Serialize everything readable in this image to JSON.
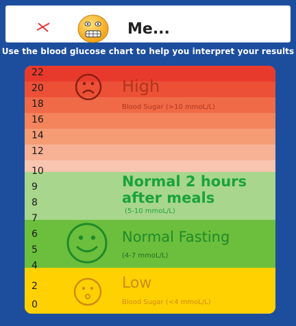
{
  "header": {
    "title": "Me...",
    "instructions": "Use the blood glucose chart to help you interpret your results"
  },
  "icons": {
    "close": "close-icon",
    "mood": "grimace-face-icon"
  },
  "chart": {
    "ticks": [
      "22",
      "20",
      "18",
      "16",
      "14",
      "12",
      "10",
      "9",
      "8",
      "7",
      "6",
      "5",
      "4",
      "2",
      "0"
    ],
    "zones": {
      "high": {
        "title": "High",
        "subtitle": "Blood Sugar (>10 mmoL/L)"
      },
      "post_meal": {
        "title_line1": "Normal 2 hours",
        "title_line2": "after meals",
        "subtitle": "(5-10 mmoL/L)"
      },
      "fasting": {
        "title": "Normal Fasting",
        "subtitle": "(4-7 mmoL/L)"
      },
      "low": {
        "title": "Low",
        "subtitle": "Blood Sugar (<4 mmoL/L)"
      }
    }
  },
  "colors": {
    "background": "#1d4e9e",
    "high_top": "#e83a2c",
    "high_bottom": "#f7c6b6",
    "post_meal": "#a8d68c",
    "fasting": "#6cbf3c",
    "low": "#ffd100",
    "green_text": "#1aa33a",
    "high_text": "#b0351a",
    "low_text": "#d18b12"
  }
}
